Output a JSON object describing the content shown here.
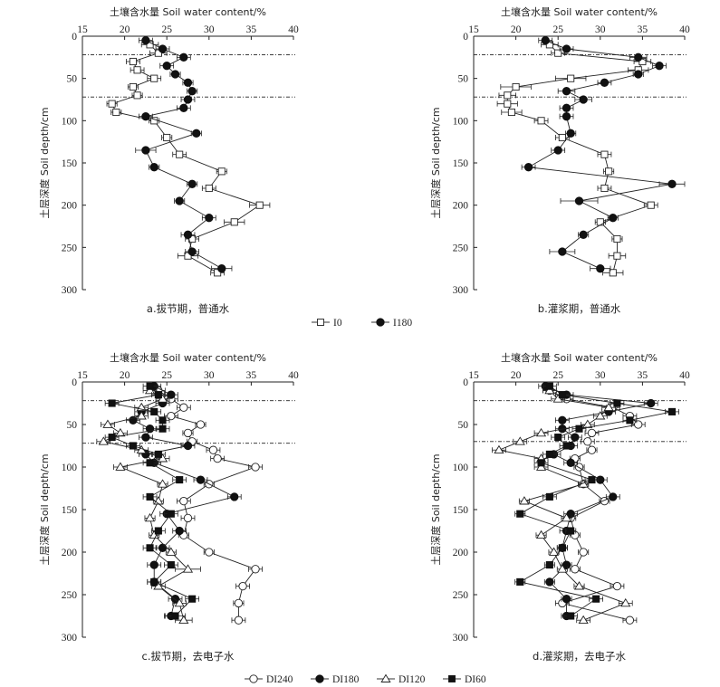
{
  "legend_top": {
    "items": [
      {
        "label": "I0",
        "marker": "square-open"
      },
      {
        "label": "I180",
        "marker": "circle-filled"
      }
    ]
  },
  "legend_bottom": {
    "items": [
      {
        "label": "DI240",
        "marker": "circle-open"
      },
      {
        "label": "DI180",
        "marker": "circle-filled"
      },
      {
        "label": "DI120",
        "marker": "triangle-open"
      },
      {
        "label": "DI60",
        "marker": "square-filled"
      }
    ]
  },
  "chart_data": [
    {
      "id": "a",
      "type": "line",
      "caption": "a.拔节期，普通水",
      "xlabel": "土壤含水量 Soil water content/%",
      "ylabel": "土层深度 Soil depth/cm",
      "xlim": [
        15,
        40
      ],
      "ylim": [
        0,
        300
      ],
      "xticks": [
        15,
        20,
        25,
        30,
        35,
        40
      ],
      "yticks": [
        0,
        50,
        100,
        150,
        200,
        250,
        300
      ],
      "reference_depths": [
        22,
        72
      ],
      "series": [
        {
          "name": "I0",
          "marker": "square-open",
          "depth": [
            10,
            20,
            30,
            40,
            50,
            60,
            70,
            80,
            90,
            100,
            120,
            140,
            160,
            180,
            200,
            220,
            240,
            260,
            280
          ],
          "value": [
            23.0,
            24.0,
            21.0,
            21.5,
            23.5,
            21.0,
            21.5,
            18.5,
            19.0,
            23.5,
            25.0,
            26.5,
            31.5,
            30.0,
            36.0,
            33.0,
            28.0,
            27.5,
            31.0
          ],
          "error": [
            1.0,
            1.0,
            0.8,
            0.8,
            0.8,
            0.6,
            0.6,
            0.6,
            0.6,
            0.6,
            0.6,
            0.8,
            0.6,
            0.8,
            1.2,
            1.2,
            0.8,
            1.2,
            0.8
          ]
        },
        {
          "name": "I180",
          "marker": "circle-filled",
          "depth": [
            5,
            15,
            25,
            35,
            45,
            55,
            65,
            75,
            85,
            95,
            115,
            135,
            155,
            175,
            195,
            215,
            235,
            255,
            275
          ],
          "value": [
            22.5,
            24.5,
            27.0,
            25.0,
            26.0,
            27.5,
            28.0,
            27.5,
            27.0,
            22.5,
            28.5,
            22.5,
            23.5,
            28.0,
            26.5,
            30.0,
            27.5,
            28.0,
            31.5
          ],
          "error": [
            0.8,
            0.8,
            0.8,
            0.8,
            0.6,
            0.6,
            0.6,
            0.8,
            0.8,
            0.8,
            0.6,
            1.2,
            0.6,
            0.6,
            0.6,
            0.8,
            0.8,
            0.8,
            1.2
          ]
        }
      ]
    },
    {
      "id": "b",
      "type": "line",
      "caption": "b.灌浆期，普通水",
      "xlabel": "土壤含水量 Soil water content/%",
      "ylabel": "土层深度 Soil depth/cm",
      "xlim": [
        15,
        40
      ],
      "ylim": [
        0,
        300
      ],
      "xticks": [
        15,
        20,
        25,
        30,
        35,
        40
      ],
      "yticks": [
        0,
        50,
        100,
        150,
        200,
        250,
        300
      ],
      "reference_depths": [
        22,
        72
      ],
      "series": [
        {
          "name": "I0",
          "marker": "square-open",
          "depth": [
            10,
            20,
            30,
            40,
            50,
            60,
            70,
            80,
            90,
            100,
            120,
            140,
            160,
            180,
            200,
            220,
            240,
            260,
            280
          ],
          "value": [
            24.0,
            25.0,
            35.0,
            34.5,
            26.5,
            20.0,
            19.0,
            19.0,
            19.5,
            23.0,
            25.5,
            30.5,
            31.0,
            30.5,
            36.0,
            30.0,
            32.0,
            32.0,
            31.5
          ],
          "error": [
            1.0,
            0.8,
            1.0,
            1.2,
            1.8,
            1.8,
            1.0,
            1.2,
            1.2,
            0.8,
            0.8,
            0.8,
            0.6,
            0.8,
            0.8,
            0.6,
            0.6,
            1.0,
            1.2
          ]
        },
        {
          "name": "I180",
          "marker": "circle-filled",
          "depth": [
            5,
            15,
            25,
            35,
            45,
            55,
            65,
            75,
            85,
            95,
            115,
            135,
            155,
            175,
            195,
            215,
            235,
            255,
            275
          ],
          "value": [
            23.5,
            26.0,
            34.5,
            37.0,
            34.5,
            30.5,
            26.0,
            28.0,
            26.0,
            26.0,
            26.5,
            25.0,
            21.5,
            38.5,
            27.5,
            31.5,
            28.0,
            25.5,
            30.0
          ],
          "error": [
            0.8,
            0.8,
            1.0,
            0.8,
            0.6,
            0.8,
            1.0,
            1.0,
            0.8,
            0.8,
            0.6,
            0.8,
            0.8,
            1.5,
            2.2,
            0.6,
            0.6,
            1.5,
            1.2
          ]
        }
      ]
    },
    {
      "id": "c",
      "type": "line",
      "caption": "c.拔节期，去电子水",
      "xlabel": "土壤含水量 Soil water content/%",
      "ylabel": "土层深度 Soil depth/cm",
      "xlim": [
        15,
        40
      ],
      "ylim": [
        0,
        300
      ],
      "xticks": [
        15,
        20,
        25,
        30,
        35,
        40
      ],
      "yticks": [
        0,
        50,
        100,
        150,
        200,
        250,
        300
      ],
      "reference_depths": [
        22,
        72
      ],
      "series": [
        {
          "name": "DI240",
          "marker": "circle-open",
          "depth": [
            10,
            20,
            30,
            40,
            50,
            60,
            70,
            80,
            90,
            100,
            120,
            140,
            160,
            180,
            200,
            220,
            240,
            260,
            280
          ],
          "value": [
            24.0,
            25.5,
            27.0,
            25.5,
            29.0,
            27.5,
            28.0,
            30.5,
            31.0,
            35.5,
            30.0,
            27.0,
            27.5,
            27.0,
            30.0,
            35.5,
            34.0,
            33.5,
            33.5
          ],
          "error": [
            0.8,
            0.8,
            0.8,
            0.8,
            0.6,
            0.6,
            0.6,
            0.8,
            0.8,
            0.8,
            0.6,
            0.8,
            0.8,
            0.6,
            0.6,
            0.8,
            0.8,
            0.6,
            0.8
          ]
        },
        {
          "name": "DI180",
          "marker": "circle-filled",
          "depth": [
            5,
            15,
            25,
            35,
            45,
            55,
            65,
            75,
            85,
            95,
            115,
            135,
            155,
            175,
            195,
            215,
            235,
            255,
            275
          ],
          "value": [
            23.5,
            25.5,
            24.5,
            22.0,
            21.0,
            23.0,
            22.5,
            27.5,
            22.5,
            23.5,
            29.0,
            33.0,
            25.0,
            26.5,
            24.5,
            23.5,
            23.5,
            26.0,
            25.5
          ],
          "error": [
            0.8,
            0.8,
            0.8,
            0.8,
            0.8,
            0.8,
            0.8,
            0.8,
            0.8,
            0.8,
            0.8,
            0.8,
            0.8,
            0.8,
            0.8,
            0.8,
            0.8,
            0.8,
            0.8
          ]
        },
        {
          "name": "DI120",
          "marker": "triangle-open",
          "depth": [
            10,
            20,
            30,
            40,
            50,
            60,
            70,
            80,
            90,
            100,
            120,
            140,
            160,
            180,
            200,
            220,
            240,
            260,
            280
          ],
          "value": [
            23.0,
            24.5,
            22.0,
            22.0,
            18.0,
            19.5,
            17.5,
            22.0,
            24.5,
            19.5,
            24.5,
            24.0,
            23.0,
            23.5,
            25.5,
            27.5,
            24.0,
            26.5,
            27.0
          ],
          "error": [
            0.8,
            0.8,
            0.8,
            0.8,
            0.8,
            0.8,
            0.8,
            0.8,
            0.8,
            0.8,
            0.6,
            0.6,
            0.6,
            0.6,
            0.6,
            1.5,
            0.8,
            0.8,
            1.0
          ]
        },
        {
          "name": "DI60",
          "marker": "square-filled",
          "depth": [
            5,
            15,
            25,
            35,
            45,
            55,
            65,
            75,
            85,
            95,
            115,
            135,
            155,
            175,
            195,
            215,
            235,
            255,
            275
          ],
          "value": [
            23.0,
            24.0,
            18.5,
            23.5,
            24.5,
            24.5,
            18.5,
            21.0,
            24.0,
            23.0,
            26.5,
            23.0,
            25.5,
            24.0,
            23.0,
            25.5,
            23.5,
            28.0,
            26.0
          ],
          "error": [
            0.8,
            0.8,
            0.8,
            0.8,
            0.8,
            0.8,
            0.8,
            0.8,
            0.8,
            0.8,
            0.8,
            0.8,
            0.8,
            0.8,
            0.8,
            0.8,
            0.8,
            0.8,
            1.2
          ]
        }
      ]
    },
    {
      "id": "d",
      "type": "line",
      "caption": "d.灌浆期，去电子水",
      "xlabel": "土壤含水量 Soil water content/%",
      "ylabel": "土层深度 Soil depth/cm",
      "xlim": [
        15,
        40
      ],
      "ylim": [
        0,
        300
      ],
      "xticks": [
        15,
        20,
        25,
        30,
        35,
        40
      ],
      "yticks": [
        0,
        50,
        100,
        150,
        200,
        250,
        300
      ],
      "reference_depths": [
        22,
        70
      ],
      "series": [
        {
          "name": "DI240",
          "marker": "circle-open",
          "depth": [
            10,
            20,
            30,
            40,
            50,
            60,
            70,
            80,
            90,
            100,
            120,
            140,
            160,
            180,
            200,
            220,
            240,
            260,
            280
          ],
          "value": [
            24.0,
            26.0,
            31.5,
            33.5,
            34.5,
            29.0,
            28.5,
            29.0,
            27.0,
            27.5,
            28.0,
            30.5,
            26.5,
            27.0,
            28.0,
            27.0,
            32.0,
            25.5,
            33.5
          ],
          "error": [
            0.8,
            0.8,
            0.8,
            0.8,
            0.8,
            0.8,
            0.8,
            0.6,
            0.6,
            0.6,
            0.6,
            0.6,
            0.6,
            0.6,
            0.6,
            0.6,
            0.8,
            0.8,
            0.8
          ]
        },
        {
          "name": "DI180",
          "marker": "circle-filled",
          "depth": [
            5,
            15,
            25,
            35,
            45,
            55,
            65,
            75,
            85,
            95,
            115,
            135,
            155,
            175,
            195,
            215,
            235,
            255,
            275
          ],
          "value": [
            23.5,
            26.0,
            36.0,
            31.0,
            25.5,
            25.5,
            27.0,
            26.5,
            24.5,
            26.5,
            30.0,
            31.5,
            26.5,
            26.0,
            25.5,
            26.0,
            24.0,
            26.0,
            26.0
          ],
          "error": [
            0.8,
            0.8,
            0.8,
            0.8,
            0.8,
            0.8,
            0.8,
            0.8,
            0.8,
            0.8,
            0.8,
            0.8,
            0.8,
            0.8,
            0.6,
            0.6,
            0.6,
            0.6,
            0.6
          ]
        },
        {
          "name": "DI120",
          "marker": "triangle-open",
          "depth": [
            10,
            20,
            30,
            40,
            50,
            60,
            70,
            80,
            90,
            100,
            120,
            140,
            160,
            180,
            200,
            220,
            240,
            260,
            280
          ],
          "value": [
            24.0,
            25.0,
            31.0,
            30.0,
            28.5,
            23.0,
            20.5,
            18.0,
            23.0,
            23.0,
            28.0,
            21.0,
            26.0,
            23.0,
            24.5,
            25.5,
            27.5,
            33.0,
            28.0
          ],
          "error": [
            0.8,
            0.8,
            0.8,
            0.8,
            0.8,
            0.8,
            0.8,
            0.8,
            0.8,
            0.8,
            0.6,
            0.6,
            0.6,
            0.6,
            0.6,
            0.6,
            0.6,
            0.8,
            0.8
          ]
        },
        {
          "name": "DI60",
          "marker": "square-filled",
          "depth": [
            5,
            15,
            25,
            35,
            45,
            55,
            65,
            75,
            85,
            95,
            115,
            135,
            155,
            175,
            195,
            215,
            235,
            255,
            275
          ],
          "value": [
            24.0,
            25.5,
            32.0,
            38.5,
            33.5,
            27.5,
            25.0,
            26.0,
            24.0,
            23.0,
            29.0,
            24.0,
            20.5,
            26.5,
            25.5,
            24.0,
            20.5,
            29.5,
            26.5
          ],
          "error": [
            0.8,
            0.8,
            0.8,
            0.8,
            0.8,
            0.8,
            0.8,
            0.8,
            0.8,
            0.8,
            0.8,
            0.8,
            0.6,
            0.6,
            0.6,
            0.6,
            0.6,
            0.8,
            0.8
          ]
        }
      ]
    }
  ]
}
